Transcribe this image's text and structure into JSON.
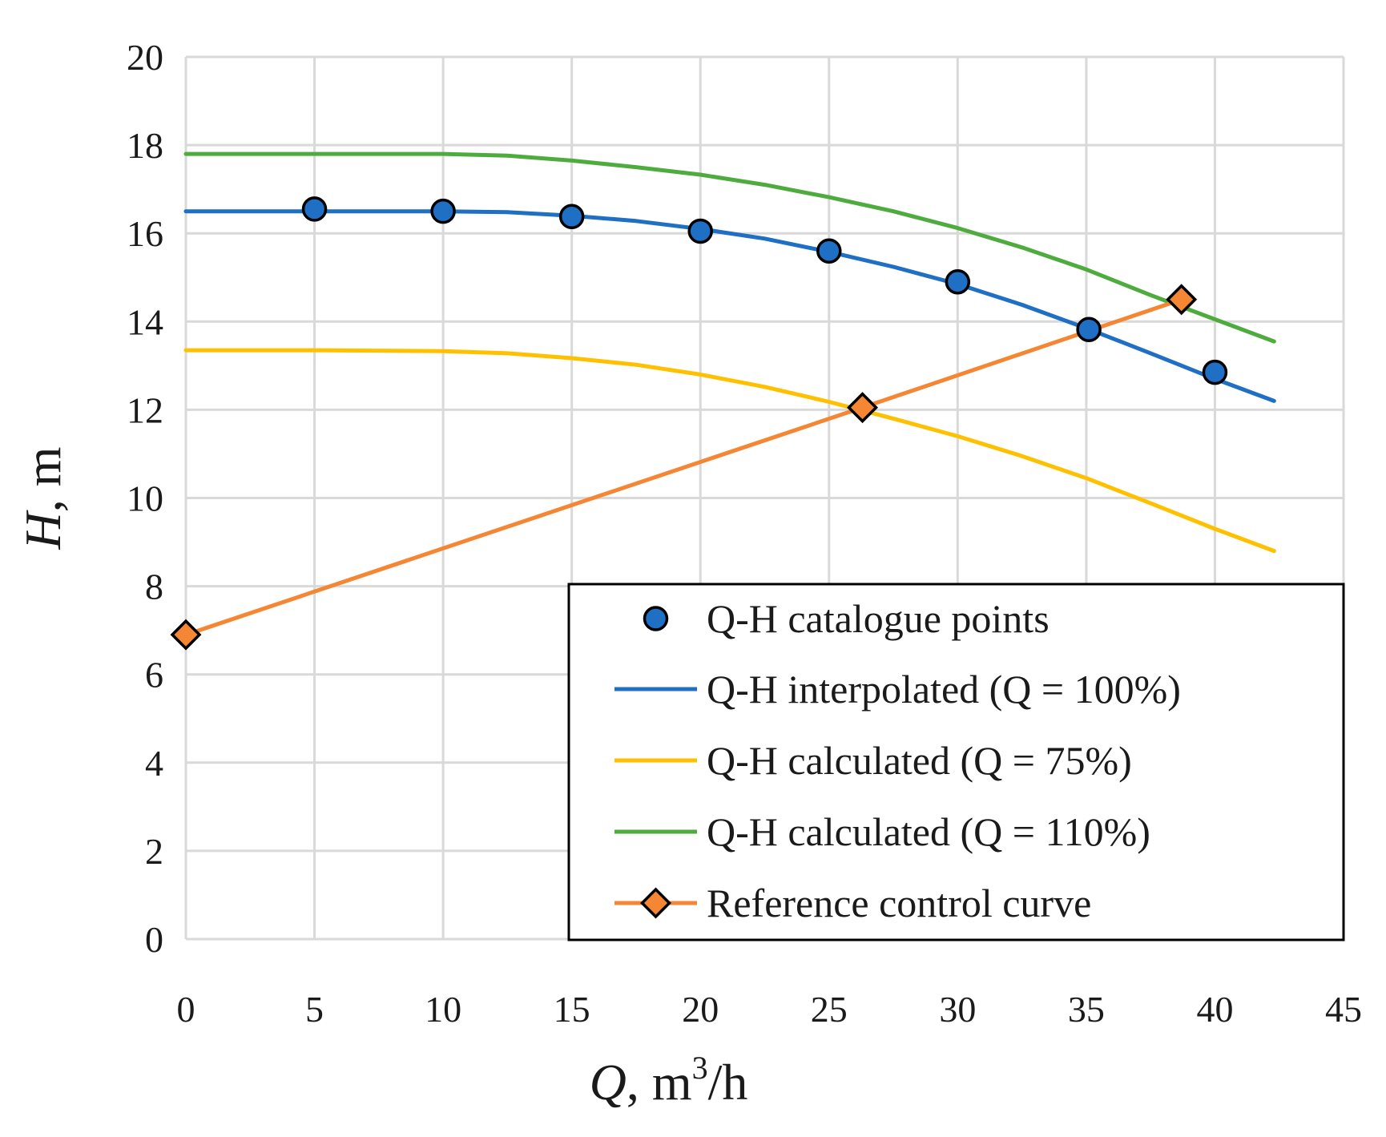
{
  "chart_data": {
    "type": "scatter",
    "xlim": [
      0,
      45
    ],
    "ylim": [
      0,
      20
    ],
    "x_ticks": [
      "0",
      "5",
      "10",
      "15",
      "20",
      "25",
      "30",
      "35",
      "40",
      "45"
    ],
    "y_ticks": [
      "0",
      "2",
      "4",
      "6",
      "8",
      "10",
      "12",
      "14",
      "16",
      "18",
      "20"
    ],
    "xlabel": {
      "var": "Q",
      "rest": ", m",
      "sup": "3",
      "tail": "/h"
    },
    "ylabel": {
      "var": "H",
      "rest": ", m"
    },
    "grid": true,
    "legend_position": "bottom-right",
    "series": [
      {
        "name": "Q-H catalogue points",
        "kind": "markers",
        "marker": "circle",
        "color": "#1F6FC5",
        "points": [
          [
            5,
            16.55
          ],
          [
            10,
            16.5
          ],
          [
            15,
            16.38
          ],
          [
            20,
            16.05
          ],
          [
            25,
            15.6
          ],
          [
            30,
            14.9
          ],
          [
            35.1,
            13.82
          ],
          [
            40,
            12.85
          ]
        ]
      },
      {
        "name": "Q-H interpolated (Q = 100%)",
        "kind": "line",
        "color": "#1F6FC5",
        "points": [
          [
            0,
            16.5
          ],
          [
            5,
            16.5
          ],
          [
            10,
            16.5
          ],
          [
            12.5,
            16.48
          ],
          [
            15,
            16.4
          ],
          [
            17.5,
            16.28
          ],
          [
            20,
            16.1
          ],
          [
            22.5,
            15.88
          ],
          [
            25,
            15.58
          ],
          [
            27.5,
            15.24
          ],
          [
            30,
            14.85
          ],
          [
            32.5,
            14.38
          ],
          [
            35,
            13.85
          ],
          [
            37.5,
            13.28
          ],
          [
            40,
            12.7
          ],
          [
            42.3,
            12.2
          ]
        ]
      },
      {
        "name": "Q-H calculated (Q = 75%)",
        "kind": "line",
        "color": "#FFC000",
        "points": [
          [
            0,
            13.35
          ],
          [
            5,
            13.35
          ],
          [
            10,
            13.33
          ],
          [
            12.5,
            13.28
          ],
          [
            15,
            13.17
          ],
          [
            17.5,
            13.02
          ],
          [
            20,
            12.8
          ],
          [
            22.5,
            12.52
          ],
          [
            25,
            12.18
          ],
          [
            27.5,
            11.8
          ],
          [
            30,
            11.4
          ],
          [
            32.5,
            10.95
          ],
          [
            35,
            10.45
          ],
          [
            37.5,
            9.88
          ],
          [
            40,
            9.3
          ],
          [
            42.3,
            8.8
          ]
        ]
      },
      {
        "name": "Q-H calculated (Q = 110%)",
        "kind": "line",
        "color": "#4EAC3E",
        "points": [
          [
            0,
            17.8
          ],
          [
            5,
            17.8
          ],
          [
            10,
            17.8
          ],
          [
            12.5,
            17.76
          ],
          [
            15,
            17.65
          ],
          [
            17.5,
            17.5
          ],
          [
            20,
            17.33
          ],
          [
            22.5,
            17.1
          ],
          [
            25,
            16.82
          ],
          [
            27.5,
            16.5
          ],
          [
            30,
            16.12
          ],
          [
            32.5,
            15.68
          ],
          [
            35,
            15.18
          ],
          [
            37.5,
            14.6
          ],
          [
            40,
            14.05
          ],
          [
            42.3,
            13.55
          ]
        ]
      },
      {
        "name": "Reference control curve",
        "kind": "line_markers",
        "marker": "diamond",
        "color": "#F58634",
        "points": [
          [
            0,
            6.9
          ],
          [
            26.3,
            12.05
          ],
          [
            38.7,
            14.5
          ]
        ]
      }
    ]
  }
}
